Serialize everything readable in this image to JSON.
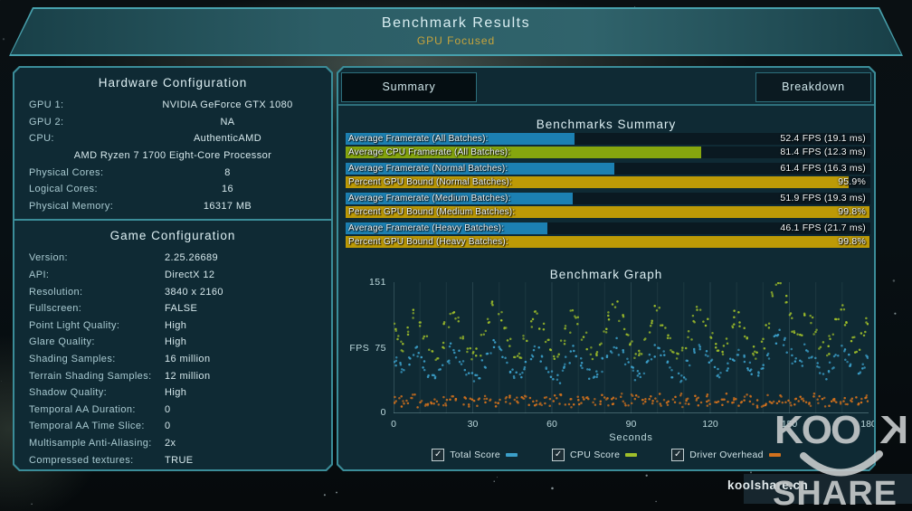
{
  "banner": {
    "title": "Benchmark Results",
    "subtitle": "GPU Focused"
  },
  "hardware": {
    "header": "Hardware Configuration",
    "rows": [
      {
        "label": "GPU 1:",
        "value": "NVIDIA GeForce GTX 1080"
      },
      {
        "label": "GPU 2:",
        "value": "NA"
      },
      {
        "label": "CPU:",
        "value": "AuthenticAMD"
      },
      {
        "label": "",
        "value": "AMD Ryzen 7 1700 Eight-Core Processor",
        "full": true
      },
      {
        "label": "Physical Cores:",
        "value": "8"
      },
      {
        "label": "Logical Cores:",
        "value": "16"
      },
      {
        "label": "Physical Memory:",
        "value": "16317  MB"
      }
    ]
  },
  "game": {
    "header": "Game Configuration",
    "rows": [
      {
        "label": "Version:",
        "value": "2.25.26689"
      },
      {
        "label": "API:",
        "value": "DirectX 12"
      },
      {
        "label": "Resolution:",
        "value": "3840 x 2160"
      },
      {
        "label": "Fullscreen:",
        "value": "FALSE"
      },
      {
        "label": "Point Light Quality:",
        "value": "High"
      },
      {
        "label": "Glare Quality:",
        "value": "High"
      },
      {
        "label": "Shading Samples:",
        "value": "16 million"
      },
      {
        "label": "Terrain Shading Samples:",
        "value": "12 million"
      },
      {
        "label": "Shadow Quality:",
        "value": "High"
      },
      {
        "label": "Temporal AA Duration:",
        "value": "0"
      },
      {
        "label": "Temporal AA Time Slice:",
        "value": "0"
      },
      {
        "label": "Multisample Anti-Aliasing:",
        "value": "2x"
      },
      {
        "label": "Compressed textures:",
        "value": "TRUE"
      }
    ]
  },
  "tabs": {
    "summary": "Summary",
    "breakdown": "Breakdown"
  },
  "summary": {
    "header": "Benchmarks Summary",
    "rows": [
      {
        "label": "Average Framerate (All Batches):",
        "value": "52.4 FPS (19.1 ms)",
        "color": "blue",
        "pct": 43.7,
        "gap": false
      },
      {
        "label": "Average CPU Framerate (All Batches):",
        "value": "81.4 FPS (12.3 ms)",
        "color": "green",
        "pct": 67.8,
        "gap": false
      },
      {
        "label": "Average Framerate (Normal Batches):",
        "value": "61.4 FPS (16.3 ms)",
        "color": "blue",
        "pct": 51.2,
        "gap": true
      },
      {
        "label": "Percent GPU Bound (Normal Batches):",
        "value": "95.9%",
        "color": "gold",
        "pct": 95.9,
        "gap": false
      },
      {
        "label": "Average Framerate (Medium Batches):",
        "value": "51.9 FPS (19.3 ms)",
        "color": "blue",
        "pct": 43.3,
        "gap": true
      },
      {
        "label": "Percent GPU Bound (Medium Batches):",
        "value": "99.8%",
        "color": "gold",
        "pct": 99.8,
        "gap": false
      },
      {
        "label": "Average Framerate (Heavy Batches):",
        "value": "46.1 FPS (21.7 ms)",
        "color": "blue",
        "pct": 38.4,
        "gap": true
      },
      {
        "label": "Percent GPU Bound (Heavy Batches):",
        "value": "99.8%",
        "color": "gold",
        "pct": 99.8,
        "gap": false
      }
    ]
  },
  "colors": {
    "bar_blue": "#1c80b2",
    "bar_green": "#86a60e",
    "bar_gold": "#bd9a06",
    "dot_blue": "#3b9fc9",
    "dot_green": "#9fbf2a",
    "dot_orange": "#d2711d",
    "accent_teal": "#3b8d99",
    "subtitle_gold": "#c7a43c"
  },
  "graph": {
    "header": "Benchmark Graph"
  },
  "chart_data": {
    "type": "scatter",
    "title": "Benchmark Graph",
    "xlabel": "Seconds",
    "ylabel": "FPS",
    "xlim": [
      0,
      180
    ],
    "ylim": [
      0,
      151
    ],
    "xticks": [
      0,
      30,
      60,
      90,
      120,
      150,
      180
    ],
    "yticks": [
      0,
      75,
      151
    ],
    "grid": "vertical-every-10s",
    "legend_position": "bottom",
    "x_start": 0,
    "x_step": 2,
    "series": [
      {
        "name": "Total Score",
        "color": "#3b9fc9",
        "values": [
          62,
          55,
          48,
          60,
          72,
          66,
          55,
          44,
          40,
          50,
          63,
          76,
          70,
          57,
          47,
          42,
          45,
          57,
          68,
          79,
          71,
          60,
          50,
          44,
          41,
          54,
          66,
          75,
          63,
          52,
          44,
          40,
          49,
          62,
          73,
          68,
          56,
          45,
          41,
          47,
          60,
          71,
          81,
          70,
          58,
          49,
          43,
          45,
          56,
          67,
          77,
          66,
          54,
          47,
          41,
          44,
          57,
          70,
          78,
          67,
          56,
          48,
          44,
          52,
          63,
          73,
          64,
          53,
          45,
          43,
          50,
          64,
          85,
          93,
          82,
          71,
          60,
          57,
          74,
          68,
          58,
          50,
          45,
          54,
          66,
          76,
          63,
          53,
          47,
          56,
          67
        ]
      },
      {
        "name": "CPU Score",
        "color": "#9fbf2a",
        "values": [
          98,
          88,
          75,
          95,
          115,
          105,
          85,
          70,
          65,
          80,
          100,
          120,
          110,
          90,
          75,
          68,
          72,
          90,
          108,
          125,
          112,
          95,
          80,
          70,
          66,
          85,
          105,
          118,
          100,
          82,
          70,
          64,
          78,
          98,
          115,
          108,
          88,
          72,
          66,
          75,
          95,
          112,
          128,
          110,
          92,
          78,
          68,
          72,
          88,
          106,
          122,
          104,
          86,
          74,
          66,
          70,
          90,
          110,
          124,
          106,
          88,
          76,
          70,
          82,
          100,
          116,
          102,
          84,
          72,
          68,
          80,
          102,
          135,
          148,
          130,
          112,
          95,
          90,
          118,
          108,
          92,
          80,
          72,
          86,
          104,
          120,
          100,
          84,
          74,
          88,
          106
        ]
      },
      {
        "name": "Driver Overhead",
        "color": "#d2711d",
        "values": [
          14,
          16,
          13,
          15,
          17,
          12,
          14,
          16,
          15,
          13,
          14,
          18,
          15,
          13,
          12,
          16,
          14,
          15,
          17,
          13,
          12,
          15,
          16,
          14,
          13,
          17,
          15,
          12,
          14,
          16,
          13,
          15,
          18,
          14,
          12,
          15,
          17,
          13,
          14,
          16,
          15,
          12,
          13,
          17,
          14,
          16,
          15,
          13,
          12,
          16,
          18,
          14,
          13,
          15,
          17,
          12,
          14,
          15,
          13,
          16,
          14,
          12,
          15,
          17,
          16,
          13,
          14,
          18,
          15,
          12,
          13,
          16,
          14,
          17,
          15,
          13,
          12,
          15,
          16,
          14,
          20,
          15,
          13,
          17,
          14,
          12,
          16,
          15,
          13,
          14,
          15
        ]
      }
    ]
  },
  "legend": [
    {
      "label": "Total Score",
      "checked": true,
      "color": "#3b9fc9",
      "check": "✓"
    },
    {
      "label": "CPU Score",
      "checked": true,
      "color": "#9fbf2a",
      "check": "✓"
    },
    {
      "label": "Driver Overhead",
      "checked": true,
      "color": "#d2711d",
      "check": "✓"
    }
  ],
  "watermark": {
    "site": "koolshare.cn",
    "logo_top": "KOO",
    "logo_mirror": "K",
    "logo_bottom": "SHARE"
  }
}
